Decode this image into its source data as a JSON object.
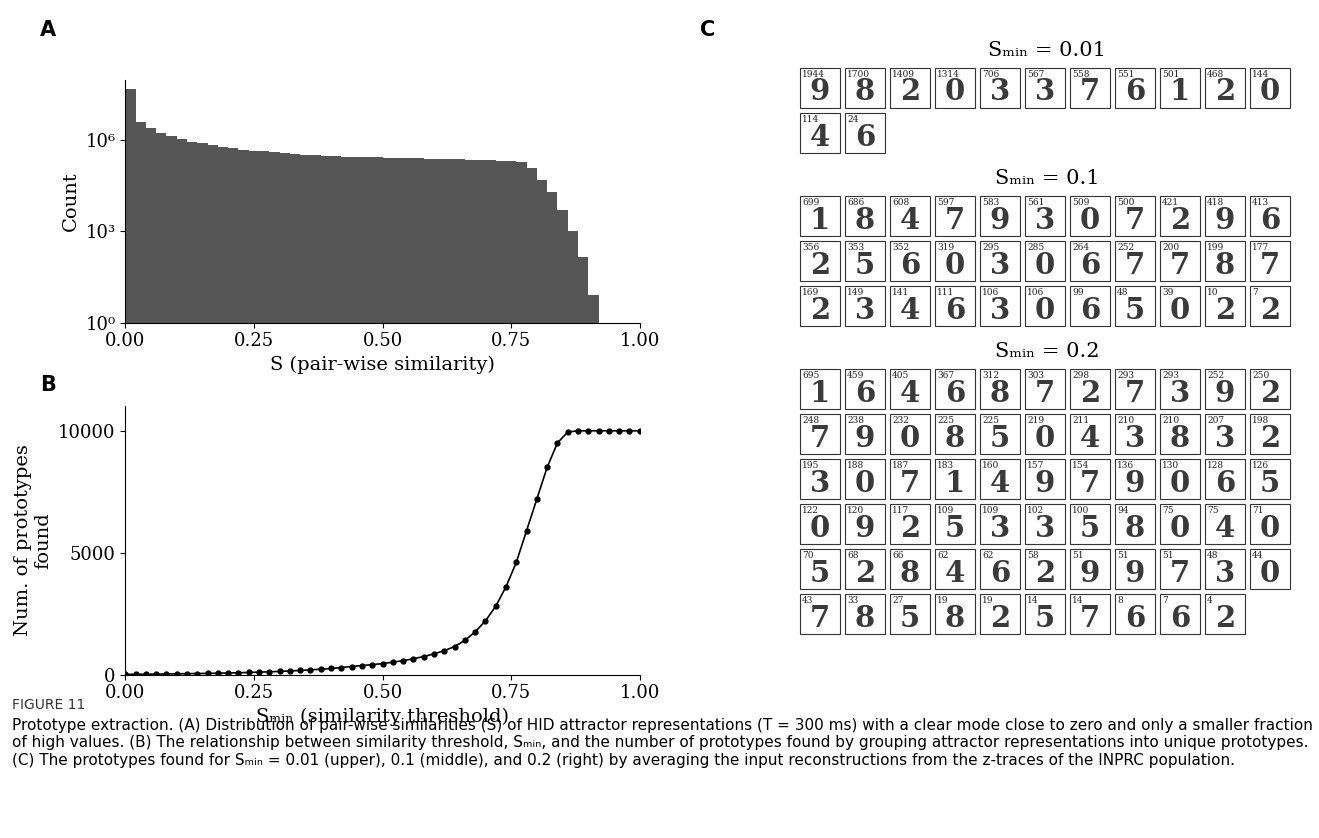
{
  "figure_label": "FIGURE 11",
  "caption": "Prototype extraction. (A) Distribution of pair-wise similarities (S) of HID attractor representations (T = 300 ms) with a clear mode close to zero and only a smaller fraction of high values. (B) The relationship between similarity threshold, Sₘᵢₙ, and the number of prototypes found by grouping attractor representations into unique prototypes. (C) The prototypes found for Sₘᵢₙ = 0.01 (upper), 0.1 (middle), and 0.2 (right) by averaging the input reconstructions from the z-traces of the INPRC population.",
  "chart_data": [
    {
      "panel": "A",
      "type": "histogram",
      "log": "y",
      "color": "#555555",
      "x_label": "S (pair-wise similarity)",
      "y_label": "Count",
      "bins": [
        0,
        0.02,
        0.04,
        0.06,
        0.08,
        0.1,
        0.12,
        0.14,
        0.16,
        0.18,
        0.2,
        0.22,
        0.24,
        0.26,
        0.28,
        0.3,
        0.32,
        0.34,
        0.36,
        0.38,
        0.4,
        0.42,
        0.44,
        0.46,
        0.48,
        0.5,
        0.52,
        0.54,
        0.56,
        0.58,
        0.6,
        0.62,
        0.64,
        0.66,
        0.68,
        0.7,
        0.72,
        0.74,
        0.76,
        0.78,
        0.8,
        0.82,
        0.84,
        0.86,
        0.88,
        0.9,
        0.92,
        0.94,
        0.96,
        0.98,
        1.0
      ],
      "counts": [
        50000000,
        4000000,
        2500000,
        1800000,
        1400000,
        1100000,
        900000,
        800000,
        700000,
        600000,
        550000,
        500000,
        460000,
        430000,
        400000,
        380000,
        360000,
        340000,
        320000,
        310000,
        300000,
        290000,
        285000,
        280000,
        275000,
        270000,
        265000,
        260000,
        255000,
        250000,
        245000,
        240000,
        235000,
        230000,
        225000,
        220000,
        215000,
        210000,
        200000,
        120000,
        50000,
        20000,
        5000,
        1000,
        150,
        8,
        0,
        0,
        0,
        0
      ],
      "xlim": [
        0,
        1
      ],
      "xticks": [
        {
          "value": 0,
          "label": "0.00"
        },
        {
          "value": 0.25,
          "label": "0.25"
        },
        {
          "value": 0.5,
          "label": "0.50"
        },
        {
          "value": 0.75,
          "label": "0.75"
        },
        {
          "value": 1,
          "label": "1.00"
        }
      ],
      "ylim": [
        1,
        100000000
      ],
      "yticks": [
        {
          "value": 1,
          "label": "10⁰"
        },
        {
          "value": 1000,
          "label": "10³"
        },
        {
          "value": 1000000,
          "label": "10⁶"
        }
      ]
    },
    {
      "panel": "B",
      "type": "line",
      "color": "#000000",
      "marker": "o",
      "x_label": "Sₘᵢₙ (similarity threshold)",
      "y_label": "Num. of prototypes\nfound",
      "x": [
        0,
        0.02,
        0.04,
        0.06,
        0.08,
        0.1,
        0.12,
        0.14,
        0.16,
        0.18,
        0.2,
        0.22,
        0.24,
        0.26,
        0.28,
        0.3,
        0.32,
        0.34,
        0.36,
        0.38,
        0.4,
        0.42,
        0.44,
        0.46,
        0.48,
        0.5,
        0.52,
        0.54,
        0.56,
        0.58,
        0.6,
        0.62,
        0.64,
        0.66,
        0.68,
        0.7,
        0.72,
        0.74,
        0.76,
        0.78,
        0.8,
        0.82,
        0.84,
        0.86,
        0.88,
        0.9,
        0.92,
        0.94,
        0.96,
        0.98,
        1.0
      ],
      "values": [
        10,
        13,
        16,
        20,
        26,
        33,
        38,
        44,
        50,
        57,
        65,
        75,
        88,
        100,
        115,
        130,
        150,
        170,
        195,
        220,
        250,
        290,
        330,
        370,
        410,
        450,
        510,
        570,
        650,
        740,
        850,
        980,
        1150,
        1400,
        1750,
        2200,
        2800,
        3600,
        4600,
        5900,
        7200,
        8500,
        9500,
        9950,
        10000,
        10000,
        10000,
        10000,
        10000,
        10000,
        10000
      ],
      "xlim": [
        0,
        1
      ],
      "xticks": [
        {
          "value": 0,
          "label": "0.00"
        },
        {
          "value": 0.25,
          "label": "0.25"
        },
        {
          "value": 0.5,
          "label": "0.50"
        },
        {
          "value": 0.75,
          "label": "0.75"
        },
        {
          "value": 1,
          "label": "1.00"
        }
      ],
      "ylim": [
        0,
        11000
      ],
      "yticks": [
        0,
        5000,
        10000
      ]
    }
  ],
  "prototype_panels": {
    "panel": "C",
    "groups": [
      {
        "title": "Sₘᵢₙ = 0.01",
        "counts": [
          1944,
          1700,
          1409,
          1314,
          706,
          567,
          558,
          551,
          501,
          468,
          144,
          114,
          24
        ],
        "digits": [
          "9",
          "8",
          "2",
          "0",
          "3",
          "3",
          "7",
          "6",
          "1",
          "2",
          "0",
          "4",
          "6"
        ]
      },
      {
        "title": "Sₘᵢₙ = 0.1",
        "counts": [
          699,
          686,
          608,
          597,
          583,
          561,
          509,
          500,
          421,
          418,
          413,
          356,
          353,
          352,
          319,
          295,
          285,
          264,
          252,
          200,
          199,
          177,
          169,
          149,
          141,
          111,
          106,
          106,
          99,
          48,
          39,
          10,
          7
        ],
        "digits": [
          "1",
          "8",
          "4",
          "7",
          "9",
          "3",
          "0",
          "7",
          "2",
          "9",
          "6",
          "2",
          "5",
          "6",
          "0",
          "3",
          "0",
          "6",
          "7",
          "7",
          "8",
          "7",
          "2",
          "3",
          "4",
          "6",
          "3",
          "0",
          "6",
          "5",
          "0",
          "2",
          "2"
        ]
      },
      {
        "title": "Sₘᵢₙ = 0.2",
        "counts": [
          695,
          459,
          405,
          367,
          312,
          303,
          298,
          293,
          293,
          252,
          250,
          248,
          238,
          232,
          225,
          225,
          219,
          211,
          210,
          210,
          207,
          198,
          195,
          188,
          187,
          183,
          160,
          157,
          154,
          136,
          130,
          128,
          126,
          122,
          120,
          117,
          109,
          109,
          102,
          100,
          94,
          75,
          75,
          71,
          70,
          68,
          66,
          62,
          62,
          58,
          51,
          51,
          51,
          48,
          44,
          43,
          33,
          27,
          19,
          19,
          14,
          14,
          8,
          7,
          4
        ],
        "digits": [
          "1",
          "6",
          "4",
          "6",
          "8",
          "7",
          "2",
          "7",
          "3",
          "9",
          "2",
          "7",
          "9",
          "0",
          "8",
          "5",
          "0",
          "4",
          "3",
          "8",
          "3",
          "2",
          "3",
          "0",
          "7",
          "1",
          "4",
          "9",
          "7",
          "9",
          "0",
          "6",
          "5",
          "0",
          "9",
          "2",
          "5",
          "3",
          "3",
          "5",
          "8",
          "0",
          "4",
          "0",
          "5",
          "2",
          "8",
          "4",
          "6",
          "2",
          "9",
          "9",
          "7",
          "3",
          "0",
          "7",
          "8",
          "5",
          "8",
          "2",
          "5",
          "7",
          "6",
          "6",
          "2"
        ]
      }
    ]
  }
}
